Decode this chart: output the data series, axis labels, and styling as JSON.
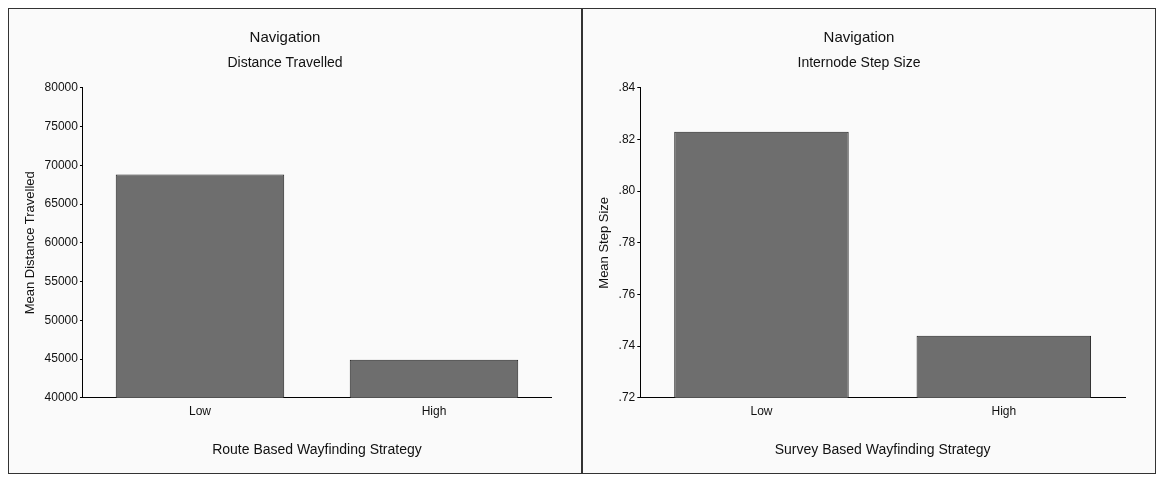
{
  "chart_data": [
    {
      "type": "bar",
      "title": "Navigation",
      "subtitle": "Distance Travelled",
      "xlabel": "Route Based Wayfinding Strategy",
      "ylabel": "Mean Distance Travelled",
      "categories": [
        "Low",
        "High"
      ],
      "values": [
        68800,
        44900
      ],
      "color": "#6e6e6e",
      "ylim": [
        40000,
        80000
      ],
      "yticks": [
        40000,
        45000,
        50000,
        55000,
        60000,
        65000,
        70000,
        75000,
        80000
      ],
      "grid": false,
      "legend": false
    },
    {
      "type": "bar",
      "title": "Navigation",
      "subtitle": "Internode Step Size",
      "xlabel": "Survey Based Wayfinding Strategy",
      "ylabel": "Mean Step Size",
      "categories": [
        "Low",
        "High"
      ],
      "values": [
        0.823,
        0.744
      ],
      "color": "#6e6e6e",
      "ylim": [
        0.72,
        0.84
      ],
      "yticks": [
        {
          "value": 0.72,
          "label": ".72"
        },
        {
          "value": 0.74,
          "label": ".74"
        },
        {
          "value": 0.76,
          "label": ".76"
        },
        {
          "value": 0.78,
          "label": ".78"
        },
        {
          "value": 0.8,
          "label": ".80"
        },
        {
          "value": 0.82,
          "label": ".82"
        },
        {
          "value": 0.84,
          "label": ".84"
        }
      ],
      "grid": false,
      "legend": false
    }
  ]
}
